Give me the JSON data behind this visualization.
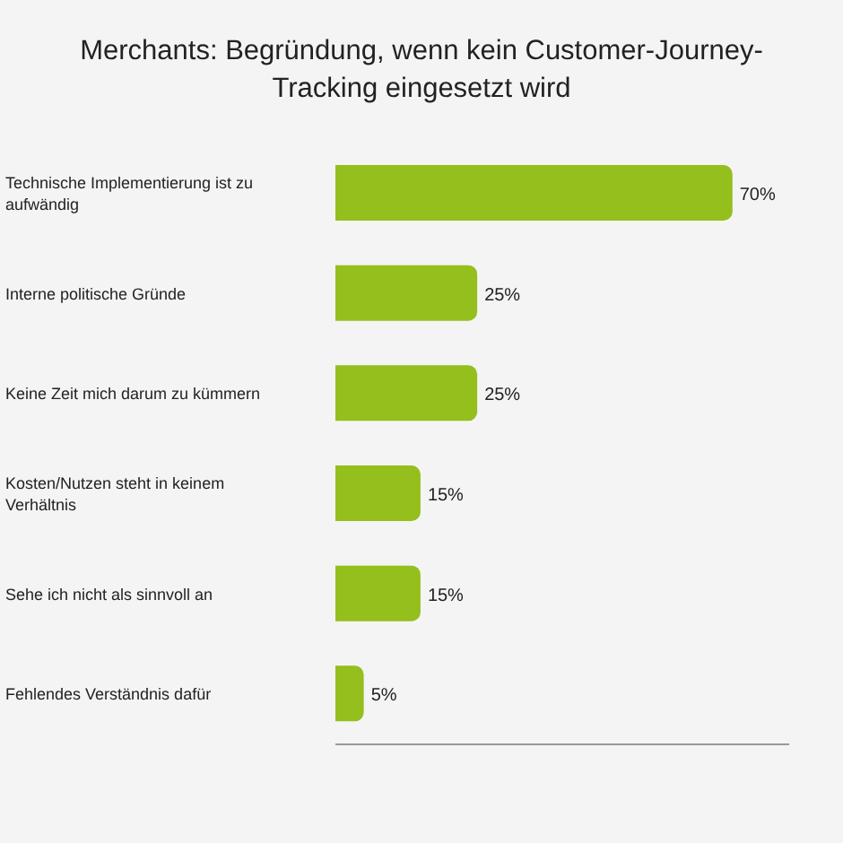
{
  "chart_data": {
    "type": "bar",
    "orientation": "horizontal",
    "title": "Merchants: Begründung, wenn kein Customer-Journey-Tracking eingesetzt wird",
    "categories": [
      "Technische Implementierung ist zu aufwändig",
      "Interne politische Gründe",
      "Keine Zeit mich darum zu kümmern",
      "Kosten/Nutzen steht in keinem Verhältnis",
      "Sehe ich nicht als sinnvoll an",
      "Fehlendes Verständnis dafür"
    ],
    "values": [
      70,
      25,
      25,
      15,
      15,
      5
    ],
    "value_labels": [
      "70%",
      "25%",
      "25%",
      "15%",
      "15%",
      "5%"
    ],
    "color": "#94bf1c",
    "tick_labels": "y",
    "grid": false
  }
}
